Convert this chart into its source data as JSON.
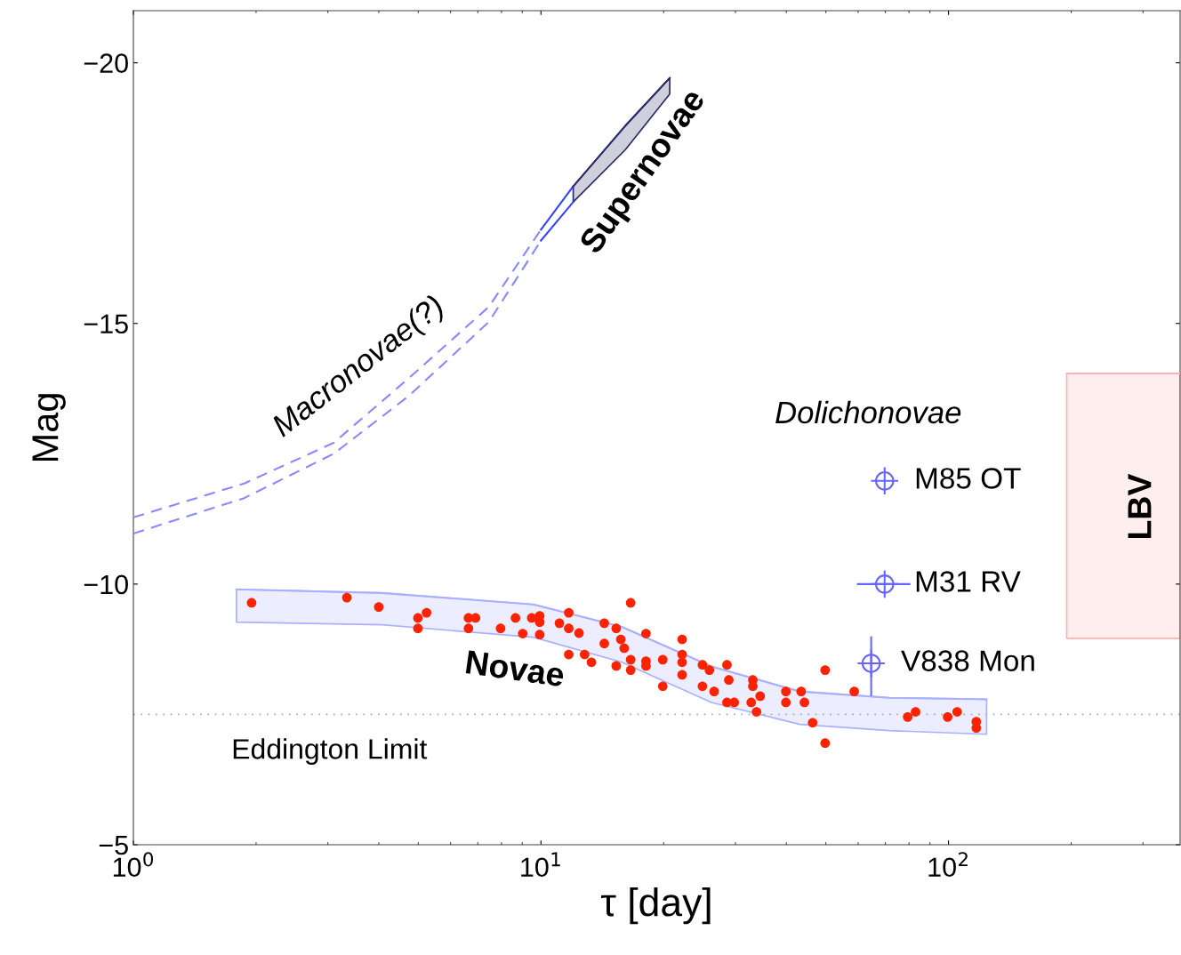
{
  "chart_data": {
    "type": "scatter",
    "xlabel": "τ [day]",
    "ylabel": "Mag",
    "log": "x",
    "xlim": [
      1,
      370
    ],
    "ylim": [
      -5,
      -21
    ],
    "xticks": [
      {
        "value": 1,
        "label": "10$^{0}$"
      },
      {
        "value": 10,
        "label": "10$^{1}$"
      },
      {
        "value": 100,
        "label": "10$^{2}$"
      }
    ],
    "yticks": [
      {
        "value": -20,
        "label": "−20"
      },
      {
        "value": -15,
        "label": "−15"
      },
      {
        "value": -10,
        "label": "−10"
      },
      {
        "value": -5,
        "label": "−5"
      }
    ],
    "grid": false,
    "legend": "right",
    "series": [
      {
        "type": "line",
        "x": [
          1.79,
          4.08,
          9.58,
          15.8,
          26.2,
          43.2,
          71.4,
          124
        ],
        "values": [
          -9.9,
          -9.83,
          -9.61,
          -9.18,
          -8.42,
          -7.94,
          -7.82,
          -7.79
        ],
        "upper": [
          -9.9,
          -9.83,
          -9.61,
          -9.18,
          -8.42,
          -7.94,
          -7.82,
          -7.79
        ],
        "lower": [
          -9.27,
          -9.22,
          -8.98,
          -8.5,
          -7.73,
          -7.31,
          -7.19,
          -7.12
        ],
        "color": "#aab0ff"
      },
      {
        "type": "line",
        "x": [
          195,
          370
        ],
        "values": [
          -14.04,
          -14.04
        ],
        "upper": [
          -14.04,
          -14.04
        ],
        "lower": [
          -8.96,
          -8.96
        ],
        "color": "#ffb0b0"
      },
      {
        "type": "line",
        "x": [
          1,
          1.87,
          3.1,
          4.74,
          7.45,
          10
        ],
        "values": [
          -11.28,
          -11.93,
          -12.71,
          -13.95,
          -15.32,
          -16.8
        ],
        "color": "#8888ff",
        "line_style": "dashed"
      },
      {
        "type": "line",
        "x": [
          1,
          1.87,
          3.1,
          4.74,
          7.45,
          10
        ],
        "values": [
          -10.97,
          -11.65,
          -12.5,
          -13.61,
          -15.03,
          -16.59
        ],
        "color": "#8888ff",
        "line_style": "dashed"
      },
      {
        "type": "line",
        "x": [
          10,
          12.0
        ],
        "values": [
          -16.8,
          -17.63
        ],
        "color": "#3344ff",
        "line_style": "solid"
      },
      {
        "type": "line",
        "x": [
          10,
          12.0
        ],
        "values": [
          -16.59,
          -17.33
        ],
        "color": "#3344ff",
        "line_style": "solid"
      },
      {
        "type": "line",
        "x": [
          12.0,
          16.1,
          20.7
        ],
        "values": [
          -17.63,
          -18.79,
          -19.71
        ],
        "upper": [
          -17.63,
          -18.79,
          -19.71
        ],
        "lower": [
          -17.33,
          -18.33,
          -19.4
        ],
        "color": "#2a2a66"
      },
      {
        "marker": "circle",
        "color": "#ff2200",
        "x": [
          1.95,
          3.34,
          4.0,
          4.99,
          5.24,
          4.99,
          6.64,
          6.91,
          6.64,
          7.96,
          8.66,
          9.02,
          9.49,
          9.93,
          9.93,
          9.93,
          11.1,
          11.7,
          11.7,
          12.4,
          11.7,
          12.8,
          13.3,
          14.3,
          14.3,
          15.3,
          15.7,
          16.0,
          15.3,
          16.6,
          16.6,
          16.6,
          18.1,
          18.1,
          18.1,
          19.9,
          19.9,
          22.2,
          22.2,
          22.2,
          22.2,
          24.9,
          25.9,
          24.9,
          26.6,
          28.6,
          28.9,
          28.6,
          29.8,
          33.1,
          33.1,
          32.8,
          34.5,
          33.8,
          39.9,
          39.9,
          43.5,
          44.3,
          46.4,
          49.8,
          49.8,
          58.7,
          79.4,
          83.0,
          99.5,
          105,
          117,
          117
        ],
        "values": [
          -9.64,
          -9.74,
          -9.56,
          -9.35,
          -9.45,
          -9.15,
          -9.35,
          -9.35,
          -9.15,
          -9.15,
          -9.35,
          -9.05,
          -9.35,
          -9.39,
          -9.27,
          -9.03,
          -9.25,
          -9.45,
          -9.15,
          -9.06,
          -8.65,
          -8.65,
          -8.5,
          -9.25,
          -8.86,
          -9.15,
          -8.94,
          -8.77,
          -8.43,
          -9.64,
          -8.55,
          -8.35,
          -9.05,
          -8.52,
          -8.43,
          -8.55,
          -8.04,
          -8.94,
          -8.65,
          -8.5,
          -8.26,
          -8.45,
          -8.35,
          -8.04,
          -7.94,
          -8.45,
          -8.16,
          -7.73,
          -7.73,
          -8.16,
          -8.04,
          -7.73,
          -7.85,
          -7.55,
          -7.94,
          -7.73,
          -7.94,
          -7.73,
          -7.34,
          -8.35,
          -6.95,
          -7.94,
          -7.45,
          -7.55,
          -7.45,
          -7.55,
          -7.36,
          -7.24
        ]
      },
      {
        "type": "scatter",
        "marker": "circle",
        "name": "M85 OT",
        "color": "#6666ff",
        "x": [
          69.7
        ],
        "values": [
          -11.98
        ]
      },
      {
        "type": "scatter",
        "marker": "circle",
        "name": "M31 RV",
        "color": "#6666ff",
        "x": [
          69.7
        ],
        "values": [
          -10.0
        ],
        "xerrors": [
          [
            59.9,
            80.2
          ]
        ]
      },
      {
        "type": "scatter",
        "marker": "circle",
        "name": "V838 Mon",
        "color": "#6666ff",
        "x": [
          64.6
        ],
        "values": [
          -8.48
        ],
        "errors": [
          [
            -8.98,
            -7.87
          ]
        ]
      }
    ],
    "ref_lines": [
      {
        "axis": "y",
        "value": -7.5,
        "label": "Eddington Limit",
        "color": "#aaaaaa",
        "line_style": "dotted"
      }
    ],
    "annotations": [
      "Novae",
      "Supernovae",
      "Macronovae(?)",
      "Dolichonovae",
      "LBV"
    ]
  }
}
